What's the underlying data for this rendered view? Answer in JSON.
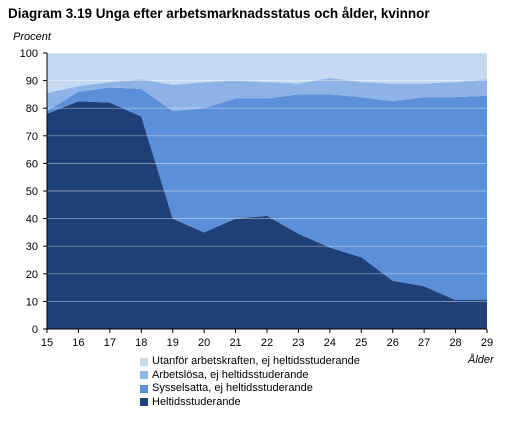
{
  "chart_data": {
    "type": "area",
    "stacked": true,
    "title": "Diagram 3.19 Unga efter arbetsmarknadsstatus och ålder, kvinnor",
    "ylabel": "Procent",
    "xlabel": "Ålder",
    "x": [
      15,
      16,
      17,
      18,
      19,
      20,
      21,
      22,
      23,
      24,
      25,
      26,
      27,
      28,
      29
    ],
    "ylim": [
      0,
      100
    ],
    "yticks": [
      0,
      10,
      20,
      30,
      40,
      50,
      60,
      70,
      80,
      90,
      100
    ],
    "grid": true,
    "legend_position": "bottom",
    "series": [
      {
        "name": "Heltidsstuderande",
        "color": "#1f3f78",
        "values": [
          78,
          82.5,
          82,
          77,
          40,
          35,
          40,
          41,
          34.5,
          29.5,
          26,
          17.5,
          15.5,
          10.5,
          10.5
        ]
      },
      {
        "name": "Sysselsatta, ej heltidsstuderande",
        "color": "#5b90d8",
        "values": [
          1,
          3.5,
          5.5,
          10,
          39,
          45,
          43.5,
          42.5,
          50.5,
          55.5,
          58,
          65,
          68.5,
          73.5,
          74
        ]
      },
      {
        "name": "Arbetslösa, ej heltidsstuderande",
        "color": "#8fb3e6",
        "values": [
          6.5,
          2,
          2,
          3.5,
          9.5,
          9.5,
          6.5,
          6,
          4,
          6,
          5.5,
          6.5,
          5,
          5.5,
          6
        ]
      },
      {
        "name": "Utanför arbetskraften, ej heltidsstuderande",
        "color": "#c5d9f1",
        "values": [
          14.5,
          12,
          10.5,
          9.5,
          11.5,
          10.5,
          10,
          10.5,
          11,
          9,
          10.5,
          11,
          11,
          10.5,
          9.5
        ]
      }
    ]
  }
}
